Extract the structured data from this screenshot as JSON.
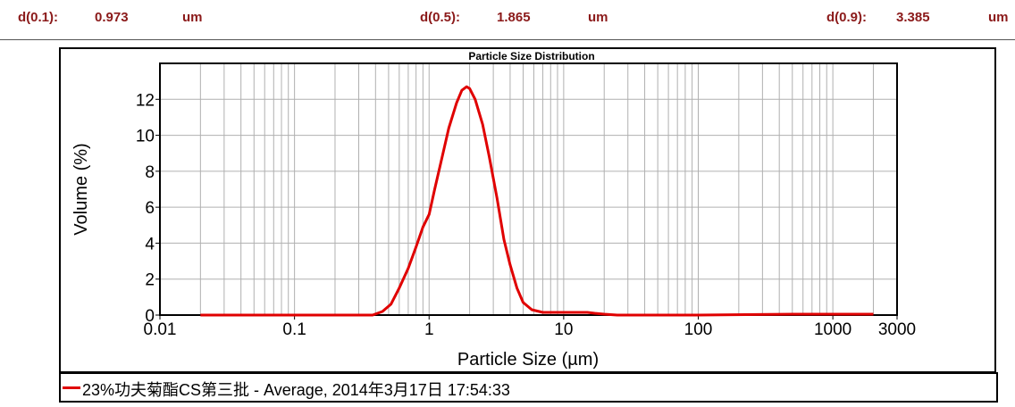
{
  "stats": {
    "d10_label": "d(0.1):",
    "d10_value": "0.973",
    "d10_unit": "um",
    "d50_label": "d(0.5):",
    "d50_value": "1.865",
    "d50_unit": "um",
    "d90_label": "d(0.9):",
    "d90_value": "3.385",
    "d90_unit": "um"
  },
  "legend": {
    "text": "23%功夫菊酯CS第三批 - Average, 2014年3月17日 17:54:33"
  },
  "colors": {
    "series": "#e00000",
    "stats_text": "#8b1a1a",
    "grid": "#b0b0b0"
  },
  "chart_data": {
    "type": "line",
    "title": "Particle Size Distribution",
    "xlabel": "Particle Size (µm)",
    "ylabel": "Volume (%)",
    "x_scale": "log",
    "xlim": [
      0.01,
      3000
    ],
    "ylim": [
      0,
      14
    ],
    "grid": true,
    "x_ticks": [
      0.01,
      0.1,
      1,
      10,
      100,
      1000,
      3000
    ],
    "x_tick_labels": [
      "0.01",
      "0.1",
      "1",
      "10",
      "100",
      "1000",
      "3000"
    ],
    "y_ticks": [
      0,
      2,
      4,
      6,
      8,
      10,
      12
    ],
    "y_tick_labels": [
      "0",
      "2",
      "4",
      "6",
      "8",
      "10",
      "12"
    ],
    "series": [
      {
        "name": "23%功夫菊酯CS第三批 - Average, 2014年3月17日 17:54:33",
        "x": [
          0.02,
          0.1,
          0.38,
          0.45,
          0.52,
          0.6,
          0.7,
          0.8,
          0.9,
          1.0,
          1.1,
          1.25,
          1.4,
          1.6,
          1.75,
          1.9,
          2.0,
          2.2,
          2.5,
          2.8,
          3.2,
          3.6,
          4.0,
          4.5,
          5.0,
          5.8,
          7.0,
          10.0,
          15.0,
          17.0,
          20.0,
          25.0,
          100.0,
          500.0,
          1000.0,
          2000.0
        ],
        "y": [
          0,
          0,
          0,
          0.2,
          0.6,
          1.5,
          2.6,
          3.8,
          4.9,
          5.6,
          7.0,
          8.8,
          10.4,
          11.8,
          12.5,
          12.7,
          12.6,
          12.0,
          10.6,
          8.8,
          6.5,
          4.2,
          2.8,
          1.5,
          0.7,
          0.3,
          0.15,
          0.15,
          0.15,
          0.1,
          0.05,
          0,
          0,
          0.05,
          0.05,
          0.05
        ]
      }
    ]
  }
}
